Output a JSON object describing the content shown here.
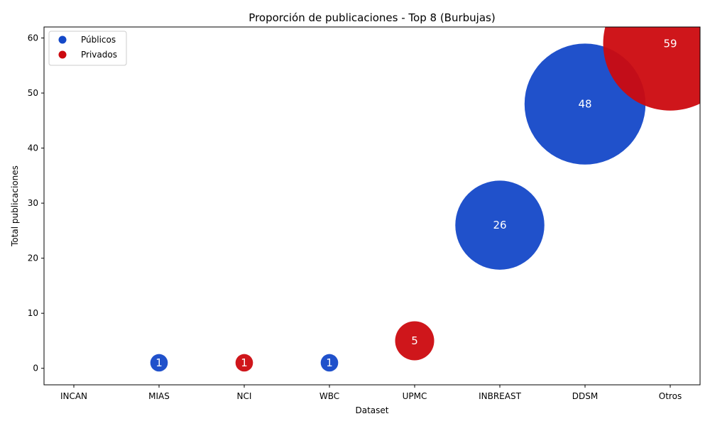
{
  "chart_data": {
    "type": "scatter",
    "title": "Proporción de publicaciones - Top 8 (Burbujas)",
    "xlabel": "Dataset",
    "ylabel": "Total publicaciones",
    "categories": [
      "INCAN",
      "MIAS",
      "NCI",
      "WBC",
      "UPMC",
      "INBREAST",
      "DDSM",
      "Otros"
    ],
    "values": [
      0,
      1,
      1,
      1,
      5,
      26,
      48,
      59
    ],
    "groups": [
      "Públicos",
      "Públicos",
      "Privados",
      "Públicos",
      "Privados",
      "Públicos",
      "Públicos",
      "Privados"
    ],
    "ylim": [
      -3,
      62
    ],
    "yticks": [
      0,
      10,
      20,
      30,
      40,
      50,
      60
    ],
    "grid": false,
    "legend": {
      "placement": "top-left",
      "entries": [
        {
          "name": "Públicos",
          "color": "#1448c8"
        },
        {
          "name": "Privados",
          "color": "#cc0a0f"
        }
      ]
    }
  }
}
